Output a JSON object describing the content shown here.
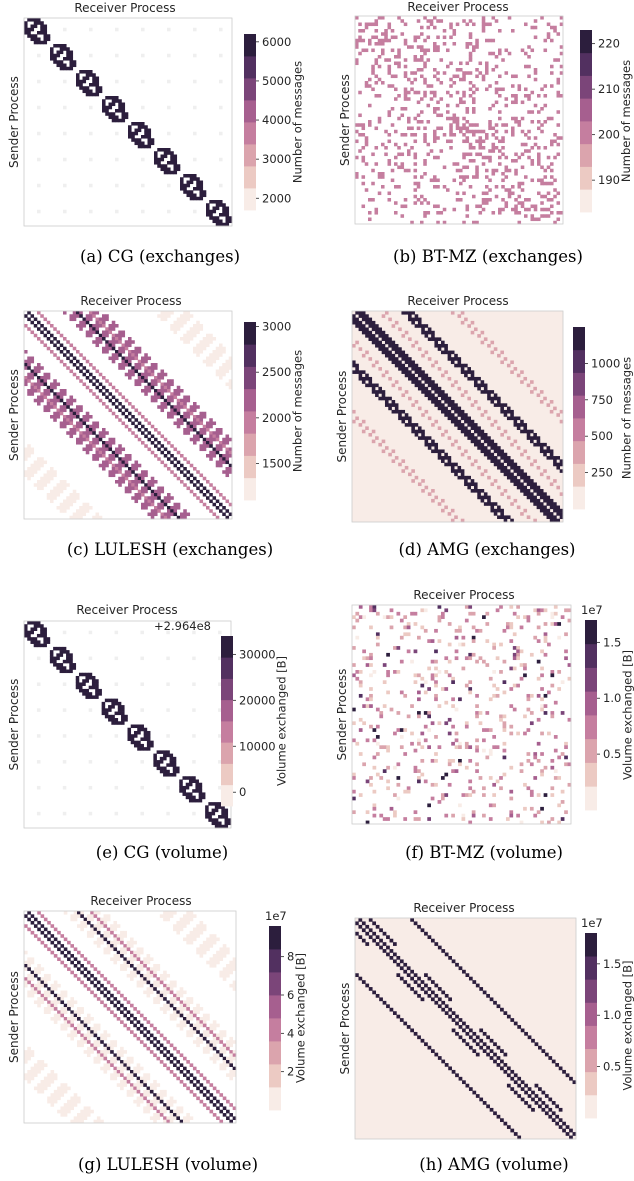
{
  "colormap": [
    "#f8ece7",
    "#eccac3",
    "#dba4ad",
    "#c57e9f",
    "#a65f8f",
    "#7b4579",
    "#523060",
    "#2c1e3d"
  ],
  "chart_data": [
    {
      "type": "heatmap",
      "panel": "a",
      "caption": "(a)  CG (exchanges)",
      "xlabel": "Receiver Process",
      "ylabel": "Sender Process",
      "pattern": "cg",
      "colorbar": {
        "label": "Number of messages",
        "ticks": [
          6000,
          5000,
          4000,
          3000,
          2000
        ],
        "tick_labels": [
          "6000",
          "5000",
          "4000",
          "3000",
          "2000"
        ],
        "range": [
          1700,
          6200
        ],
        "offset": ""
      },
      "highlight_value": 6000,
      "background_value": 1800
    },
    {
      "type": "heatmap",
      "panel": "b",
      "caption": "(b)  BT-MZ (exchanges)",
      "xlabel": "Receiver Process",
      "ylabel": "Sender Process",
      "pattern": "btmz",
      "colorbar": {
        "label": "Number of messages",
        "ticks": [
          220,
          210,
          200,
          190
        ],
        "tick_labels": [
          "220",
          "210",
          "200",
          "190"
        ],
        "range": [
          183,
          223
        ],
        "offset": ""
      },
      "highlight_value": 200
    },
    {
      "type": "heatmap",
      "panel": "c",
      "caption": "(c)  LULESH (exchanges)",
      "xlabel": "Receiver Process",
      "ylabel": "Sender Process",
      "pattern": "lulesh",
      "colorbar": {
        "label": "Number of messages",
        "ticks": [
          3000,
          2500,
          2000,
          1500
        ],
        "tick_labels": [
          "3000",
          "2500",
          "2000",
          "1500"
        ],
        "range": [
          1100,
          3050
        ],
        "offset": ""
      },
      "band_values": {
        "main": 3000,
        "near": 2000,
        "far": 1200,
        "block": 2200,
        "outer": 1200
      }
    },
    {
      "type": "heatmap",
      "panel": "d",
      "caption": "(d)  AMG (exchanges)",
      "xlabel": "Receiver Process",
      "ylabel": "Sender Process",
      "pattern": "amg_ex",
      "colorbar": {
        "label": "Number of messages",
        "ticks": [
          1000,
          750,
          500,
          250
        ],
        "tick_labels": [
          "1000",
          "750",
          "500",
          "250"
        ],
        "range": [
          0,
          1250
        ],
        "offset": ""
      },
      "band_values": {
        "block": 1150,
        "side": 350,
        "background": 30
      }
    },
    {
      "type": "heatmap",
      "panel": "e",
      "caption": "(e)  CG (volume)",
      "xlabel": "Receiver Process",
      "ylabel": "Sender Process",
      "pattern": "cg",
      "colorbar": {
        "label": "Volume exchanged [B]",
        "ticks": [
          30000,
          20000,
          10000,
          0
        ],
        "tick_labels": [
          "30000",
          "20000",
          "10000",
          "0"
        ],
        "range": [
          -3000,
          34000
        ],
        "offset": "+2.964e8"
      },
      "highlight_value": 33000,
      "background_value": 0
    },
    {
      "type": "heatmap",
      "panel": "f",
      "caption": "(f)  BT-MZ (volume)",
      "xlabel": "Receiver Process",
      "ylabel": "Sender Process",
      "pattern": "btmz_vol",
      "colorbar": {
        "label": "Volume exchanged [B]",
        "ticks": [
          1.5,
          1.0,
          0.5
        ],
        "tick_labels": [
          "1.5",
          "1.0",
          "0.5"
        ],
        "range": [
          0.0,
          1.7
        ],
        "offset": "1e7"
      }
    },
    {
      "type": "heatmap",
      "panel": "g",
      "caption": "(g)  LULESH (volume)",
      "xlabel": "Receiver Process",
      "ylabel": "Sender Process",
      "pattern": "lulesh",
      "colorbar": {
        "label": "Volume exchanged [B]",
        "ticks": [
          8,
          6,
          4,
          2
        ],
        "tick_labels": [
          "8",
          "6",
          "4",
          "2"
        ],
        "range": [
          0,
          9.6
        ],
        "offset": "1e7"
      },
      "band_values": {
        "main": 9.5,
        "near": 4.5,
        "far": 0.8,
        "block": 0.8,
        "outer": 0.6
      }
    },
    {
      "type": "heatmap",
      "panel": "h",
      "caption": "(h)  AMG (volume)",
      "xlabel": "Receiver Process",
      "ylabel": "Sender Process",
      "pattern": "amg_vol",
      "colorbar": {
        "label": "Volume exchanged [B]",
        "ticks": [
          1.5,
          1.0,
          0.5
        ],
        "tick_labels": [
          "1.5",
          "1.0",
          "0.5"
        ],
        "range": [
          0.0,
          1.8
        ],
        "offset": "1e7"
      },
      "band_values": {
        "line": 1.75,
        "background": 0.05
      }
    }
  ]
}
